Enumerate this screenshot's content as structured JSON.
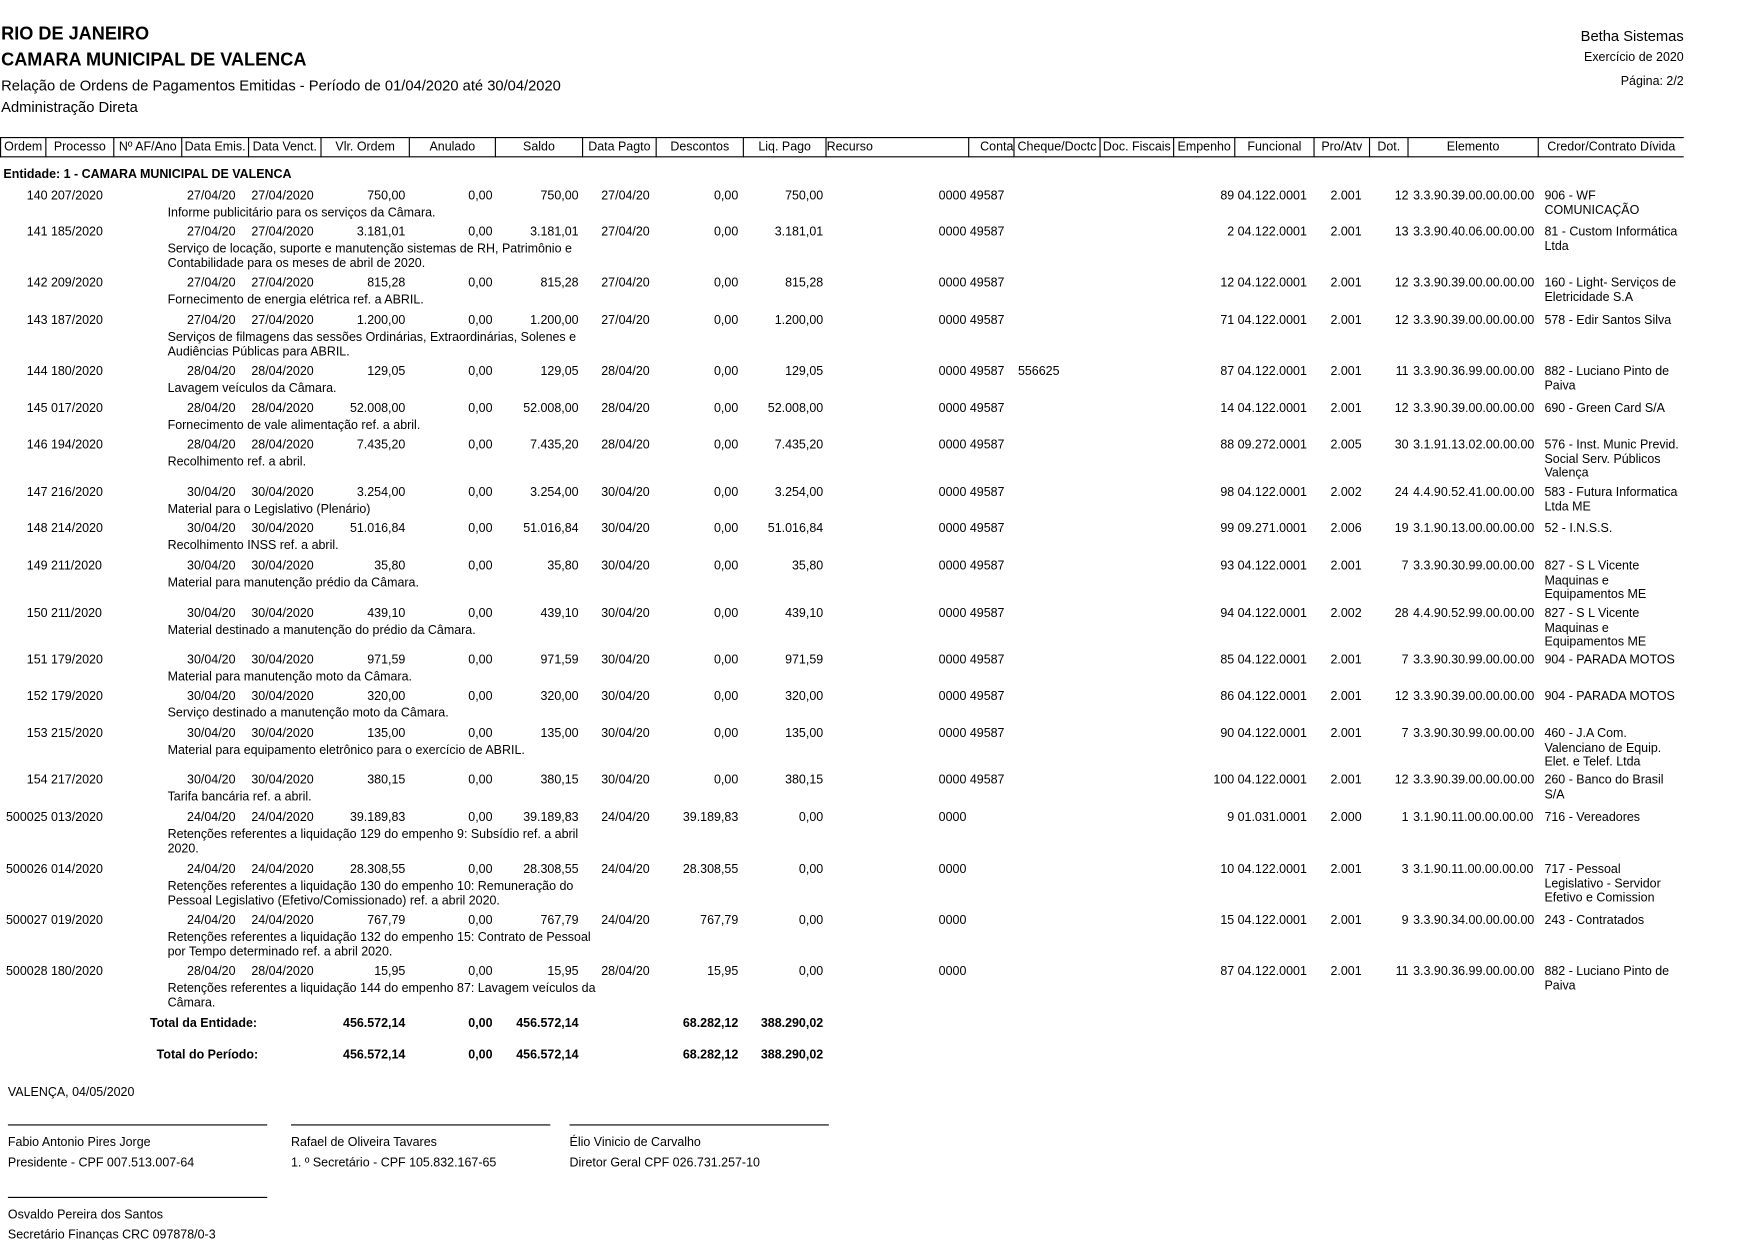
{
  "header": {
    "lines": [
      "RIO DE JANEIRO",
      "CAMARA MUNICIPAL DE VALENCA",
      "Relação de Ordens de Pagamentos Emitidas - Período de 01/04/2020 até 30/04/2020",
      "Administração Direta"
    ],
    "right": [
      "Betha Sistemas",
      "Exercício de 2020",
      "Página: 2/2"
    ]
  },
  "table": {
    "columns": [
      "Ordem",
      "Processo",
      "Nº AF/Ano",
      "Data Emis.",
      "Data Venct.",
      "Vlr. Ordem",
      "Anulado",
      "Saldo",
      "Data Pagto",
      "Descontos",
      "Liq. Pago",
      "Recurso",
      "Conta",
      "Cheque/Doctc",
      "Doc. Fiscais",
      "Empenho",
      "Funcional",
      "Pro/Atv",
      "Dot.",
      "Elemento",
      "Credor/Contrato Dívida"
    ],
    "entity": "Entidade: 1 - CAMARA MUNICIPAL DE VALENCA",
    "rows": [
      {
        "ordem": "140",
        "processo": "207/2020",
        "emis": "27/04/20",
        "venct": "27/04/2020",
        "vlr": "750,00",
        "anulado": "0,00",
        "saldo": "750,00",
        "pagto": "27/04/20",
        "descontos": "0,00",
        "liq": "750,00",
        "conta": "0000 49587",
        "empenho": "89",
        "funcional": "04.122.0001",
        "proatv": "2.001",
        "dot": "12",
        "elemento": "3.3.90.39.00.00.00.00",
        "credor": "906 - WF COMUNICAÇÃO",
        "historico": "Informe publicitário para os serviços da Câmara."
      },
      {
        "ordem": "141",
        "processo": "185/2020",
        "emis": "27/04/20",
        "venct": "27/04/2020",
        "vlr": "3.181,01",
        "anulado": "0,00",
        "saldo": "3.181,01",
        "pagto": "27/04/20",
        "descontos": "0,00",
        "liq": "3.181,01",
        "conta": "0000 49587",
        "empenho": "2",
        "funcional": "04.122.0001",
        "proatv": "2.001",
        "dot": "13",
        "elemento": "3.3.90.40.06.00.00.00",
        "credor": "81 - Custom Informática Ltda",
        "historico": "Serviço de locação, suporte e manutenção sistemas de RH, Patrimônio e Contabilidade para os meses de abril de 2020."
      },
      {
        "ordem": "142",
        "processo": "209/2020",
        "emis": "27/04/20",
        "venct": "27/04/2020",
        "vlr": "815,28",
        "anulado": "0,00",
        "saldo": "815,28",
        "pagto": "27/04/20",
        "descontos": "0,00",
        "liq": "815,28",
        "conta": "0000 49587",
        "empenho": "12",
        "funcional": "04.122.0001",
        "proatv": "2.001",
        "dot": "12",
        "elemento": "3.3.90.39.00.00.00.00",
        "credor": "160 - Light- Serviços de Eletricidade S.A",
        "historico": "Fornecimento de energia elétrica ref. a ABRIL."
      },
      {
        "ordem": "143",
        "processo": "187/2020",
        "emis": "27/04/20",
        "venct": "27/04/2020",
        "vlr": "1.200,00",
        "anulado": "0,00",
        "saldo": "1.200,00",
        "pagto": "27/04/20",
        "descontos": "0,00",
        "liq": "1.200,00",
        "conta": "0000 49587",
        "empenho": "71",
        "funcional": "04.122.0001",
        "proatv": "2.001",
        "dot": "12",
        "elemento": "3.3.90.39.00.00.00.00",
        "credor": "578 - Edir Santos Silva",
        "historico": "Serviços de filmagens das sessões Ordinárias, Extraordinárias, Solenes e Audiências Públicas para ABRIL."
      },
      {
        "ordem": "144",
        "processo": "180/2020",
        "emis": "28/04/20",
        "venct": "28/04/2020",
        "vlr": "129,05",
        "anulado": "0,00",
        "saldo": "129,05",
        "pagto": "28/04/20",
        "descontos": "0,00",
        "liq": "129,05",
        "conta": "0000 49587",
        "cheque": "556625",
        "empenho": "87",
        "funcional": "04.122.0001",
        "proatv": "2.001",
        "dot": "11",
        "elemento": "3.3.90.36.99.00.00.00",
        "credor": "882 - Luciano Pinto de Paiva",
        "historico": "Lavagem veículos da Câmara."
      },
      {
        "ordem": "145",
        "processo": "017/2020",
        "emis": "28/04/20",
        "venct": "28/04/2020",
        "vlr": "52.008,00",
        "anulado": "0,00",
        "saldo": "52.008,00",
        "pagto": "28/04/20",
        "descontos": "0,00",
        "liq": "52.008,00",
        "conta": "0000 49587",
        "empenho": "14",
        "funcional": "04.122.0001",
        "proatv": "2.001",
        "dot": "12",
        "elemento": "3.3.90.39.00.00.00.00",
        "credor": "690 - Green Card S/A",
        "historico": "Fornecimento de vale alimentação ref. a abril."
      },
      {
        "ordem": "146",
        "processo": "194/2020",
        "emis": "28/04/20",
        "venct": "28/04/2020",
        "vlr": "7.435,20",
        "anulado": "0,00",
        "saldo": "7.435,20",
        "pagto": "28/04/20",
        "descontos": "0,00",
        "liq": "7.435,20",
        "conta": "0000 49587",
        "empenho": "88",
        "funcional": "09.272.0001",
        "proatv": "2.005",
        "dot": "30",
        "elemento": "3.1.91.13.02.00.00.00",
        "credor": "576 - Inst. Munic Previd. Social Serv. Públicos Valença",
        "historico": "Recolhimento ref. a abril."
      },
      {
        "ordem": "147",
        "processo": "216/2020",
        "emis": "30/04/20",
        "venct": "30/04/2020",
        "vlr": "3.254,00",
        "anulado": "0,00",
        "saldo": "3.254,00",
        "pagto": "30/04/20",
        "descontos": "0,00",
        "liq": "3.254,00",
        "conta": "0000 49587",
        "empenho": "98",
        "funcional": "04.122.0001",
        "proatv": "2.002",
        "dot": "24",
        "elemento": "4.4.90.52.41.00.00.00",
        "credor": "583 - Futura Informatica Ltda ME",
        "historico": "Material para o Legislativo (Plenário)"
      },
      {
        "ordem": "148",
        "processo": "214/2020",
        "emis": "30/04/20",
        "venct": "30/04/2020",
        "vlr": "51.016,84",
        "anulado": "0,00",
        "saldo": "51.016,84",
        "pagto": "30/04/20",
        "descontos": "0,00",
        "liq": "51.016,84",
        "conta": "0000 49587",
        "empenho": "99",
        "funcional": "09.271.0001",
        "proatv": "2.006",
        "dot": "19",
        "elemento": "3.1.90.13.00.00.00.00",
        "credor": "52 - I.N.S.S.",
        "historico": "Recolhimento INSS ref. a abril."
      },
      {
        "ordem": "149",
        "processo": "211/2020",
        "emis": "30/04/20",
        "venct": "30/04/2020",
        "vlr": "35,80",
        "anulado": "0,00",
        "saldo": "35,80",
        "pagto": "30/04/20",
        "descontos": "0,00",
        "liq": "35,80",
        "conta": "0000 49587",
        "empenho": "93",
        "funcional": "04.122.0001",
        "proatv": "2.001",
        "dot": "7",
        "elemento": "3.3.90.30.99.00.00.00",
        "credor": "827 - S L Vicente Maquinas e Equipamentos ME",
        "historico": "Material para manutenção prédio da Câmara."
      },
      {
        "ordem": "150",
        "processo": "211/2020",
        "emis": "30/04/20",
        "venct": "30/04/2020",
        "vlr": "439,10",
        "anulado": "0,00",
        "saldo": "439,10",
        "pagto": "30/04/20",
        "descontos": "0,00",
        "liq": "439,10",
        "conta": "0000 49587",
        "empenho": "94",
        "funcional": "04.122.0001",
        "proatv": "2.002",
        "dot": "28",
        "elemento": "4.4.90.52.99.00.00.00",
        "credor": "827 - S L Vicente Maquinas e Equipamentos ME",
        "historico": "Material destinado a manutenção do prédio da Câmara."
      },
      {
        "ordem": "151",
        "processo": "179/2020",
        "emis": "30/04/20",
        "venct": "30/04/2020",
        "vlr": "971,59",
        "anulado": "0,00",
        "saldo": "971,59",
        "pagto": "30/04/20",
        "descontos": "0,00",
        "liq": "971,59",
        "conta": "0000 49587",
        "empenho": "85",
        "funcional": "04.122.0001",
        "proatv": "2.001",
        "dot": "7",
        "elemento": "3.3.90.30.99.00.00.00",
        "credor": "904 - PARADA MOTOS",
        "historico": "Material para manutenção moto da Câmara."
      },
      {
        "ordem": "152",
        "processo": "179/2020",
        "emis": "30/04/20",
        "venct": "30/04/2020",
        "vlr": "320,00",
        "anulado": "0,00",
        "saldo": "320,00",
        "pagto": "30/04/20",
        "descontos": "0,00",
        "liq": "320,00",
        "conta": "0000 49587",
        "empenho": "86",
        "funcional": "04.122.0001",
        "proatv": "2.001",
        "dot": "12",
        "elemento": "3.3.90.39.00.00.00.00",
        "credor": "904 - PARADA MOTOS",
        "historico": "Serviço destinado a manutenção moto da Câmara."
      },
      {
        "ordem": "153",
        "processo": "215/2020",
        "emis": "30/04/20",
        "venct": "30/04/2020",
        "vlr": "135,00",
        "anulado": "0,00",
        "saldo": "135,00",
        "pagto": "30/04/20",
        "descontos": "0,00",
        "liq": "135,00",
        "conta": "0000 49587",
        "empenho": "90",
        "funcional": "04.122.0001",
        "proatv": "2.001",
        "dot": "7",
        "elemento": "3.3.90.30.99.00.00.00",
        "credor": "460 - J.A Com. Valenciano de Equip. Elet. e Telef. Ltda",
        "historico": "Material para equipamento eletrônico para o exercício de ABRIL."
      },
      {
        "ordem": "154",
        "processo": "217/2020",
        "emis": "30/04/20",
        "venct": "30/04/2020",
        "vlr": "380,15",
        "anulado": "0,00",
        "saldo": "380,15",
        "pagto": "30/04/20",
        "descontos": "0,00",
        "liq": "380,15",
        "conta": "0000 49587",
        "empenho": "100",
        "funcional": "04.122.0001",
        "proatv": "2.001",
        "dot": "12",
        "elemento": "3.3.90.39.00.00.00.00",
        "credor": "260 - Banco do Brasil S/A",
        "historico": "Tarifa bancária ref. a abril."
      },
      {
        "ordem": "500025",
        "processo": "013/2020",
        "emis": "24/04/20",
        "venct": "24/04/2020",
        "vlr": "39.189,83",
        "anulado": "0,00",
        "saldo": "39.189,83",
        "pagto": "24/04/20",
        "descontos": "39.189,83",
        "liq": "0,00",
        "conta": "0000",
        "empenho": "9",
        "funcional": "01.031.0001",
        "proatv": "2.000",
        "dot": "1",
        "elemento": "3.1.90.11.00.00.00.00",
        "credor": "716 - Vereadores",
        "historico": "Retenções referentes a liquidação 129 do empenho 9: Subsídio ref. a abril 2020."
      },
      {
        "ordem": "500026",
        "processo": "014/2020",
        "emis": "24/04/20",
        "venct": "24/04/2020",
        "vlr": "28.308,55",
        "anulado": "0,00",
        "saldo": "28.308,55",
        "pagto": "24/04/20",
        "descontos": "28.308,55",
        "liq": "0,00",
        "conta": "0000",
        "empenho": "10",
        "funcional": "04.122.0001",
        "proatv": "2.001",
        "dot": "3",
        "elemento": "3.1.90.11.00.00.00.00",
        "credor": "717 - Pessoal Legislativo - Servidor Efetivo e Comission",
        "historico": "Retenções referentes a liquidação 130 do empenho 10: Remuneração do Pessoal Legislativo (Efetivo/Comissionado) ref. a abril 2020."
      },
      {
        "ordem": "500027",
        "processo": "019/2020",
        "emis": "24/04/20",
        "venct": "24/04/2020",
        "vlr": "767,79",
        "anulado": "0,00",
        "saldo": "767,79",
        "pagto": "24/04/20",
        "descontos": "767,79",
        "liq": "0,00",
        "conta": "0000",
        "empenho": "15",
        "funcional": "04.122.0001",
        "proatv": "2.001",
        "dot": "9",
        "elemento": "3.3.90.34.00.00.00.00",
        "credor": "243 - Contratados",
        "historico": "Retenções referentes a liquidação 132 do empenho 15: Contrato de Pessoal por Tempo determinado ref. a abril 2020."
      },
      {
        "ordem": "500028",
        "processo": "180/2020",
        "emis": "28/04/20",
        "venct": "28/04/2020",
        "vlr": "15,95",
        "anulado": "0,00",
        "saldo": "15,95",
        "pagto": "28/04/20",
        "descontos": "15,95",
        "liq": "0,00",
        "conta": "0000",
        "empenho": "87",
        "funcional": "04.122.0001",
        "proatv": "2.001",
        "dot": "11",
        "elemento": "3.3.90.36.99.00.00.00",
        "credor": "882 - Luciano Pinto de Paiva",
        "historico": "Retenções referentes a liquidação 144 do empenho 87: Lavagem veículos da Câmara."
      }
    ],
    "totals": [
      {
        "label": "Total da Entidade:",
        "vlr": "456.572,14",
        "anulado": "0,00",
        "saldo": "456.572,14",
        "descontos": "68.282,12",
        "liq": "388.290,02"
      },
      {
        "label": "Total do Período:",
        "vlr": "456.572,14",
        "anulado": "0,00",
        "saldo": "456.572,14",
        "descontos": "68.282,12",
        "liq": "388.290,02"
      }
    ]
  },
  "footer": {
    "place_date": "VALENÇA,  04/05/2020",
    "signatures": [
      {
        "name": "Fabio Antonio Pires Jorge",
        "role": "Presidente - CPF 007.513.007-64"
      },
      {
        "name": "Rafael de Oliveira Tavares",
        "role": "1. º Secretário - CPF 105.832.167-65"
      },
      {
        "name": "Élio Vinicio de Carvalho",
        "role": "Diretor Geral  CPF 026.731.257-10"
      },
      {
        "name": "Osvaldo Pereira dos Santos",
        "role": "Secretário Finanças CRC 097878/0-3"
      }
    ]
  }
}
